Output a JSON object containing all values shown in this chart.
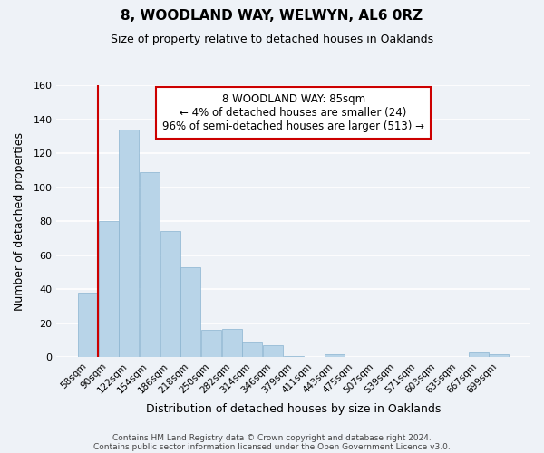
{
  "title": "8, WOODLAND WAY, WELWYN, AL6 0RZ",
  "subtitle": "Size of property relative to detached houses in Oaklands",
  "xlabel": "Distribution of detached houses by size in Oaklands",
  "ylabel": "Number of detached properties",
  "bar_labels": [
    "58sqm",
    "90sqm",
    "122sqm",
    "154sqm",
    "186sqm",
    "218sqm",
    "250sqm",
    "282sqm",
    "314sqm",
    "346sqm",
    "379sqm",
    "411sqm",
    "443sqm",
    "475sqm",
    "507sqm",
    "539sqm",
    "571sqm",
    "603sqm",
    "635sqm",
    "667sqm",
    "699sqm"
  ],
  "bar_values": [
    38,
    80,
    134,
    109,
    74,
    53,
    16,
    17,
    9,
    7,
    1,
    0,
    2,
    0,
    0,
    0,
    0,
    0,
    0,
    3,
    2
  ],
  "bar_color": "#b8d4e8",
  "bar_edge_color": "#8ab4d0",
  "ylim": [
    0,
    160
  ],
  "yticks": [
    0,
    20,
    40,
    60,
    80,
    100,
    120,
    140,
    160
  ],
  "annotation_title": "8 WOODLAND WAY: 85sqm",
  "annotation_line1": "← 4% of detached houses are smaller (24)",
  "annotation_line2": "96% of semi-detached houses are larger (513) →",
  "annotation_box_color": "#ffffff",
  "annotation_box_edge": "#cc0000",
  "property_line_color": "#cc0000",
  "footer_line1": "Contains HM Land Registry data © Crown copyright and database right 2024.",
  "footer_line2": "Contains public sector information licensed under the Open Government Licence v3.0.",
  "background_color": "#eef2f7",
  "plot_background": "#eef2f7",
  "grid_color": "#ffffff"
}
